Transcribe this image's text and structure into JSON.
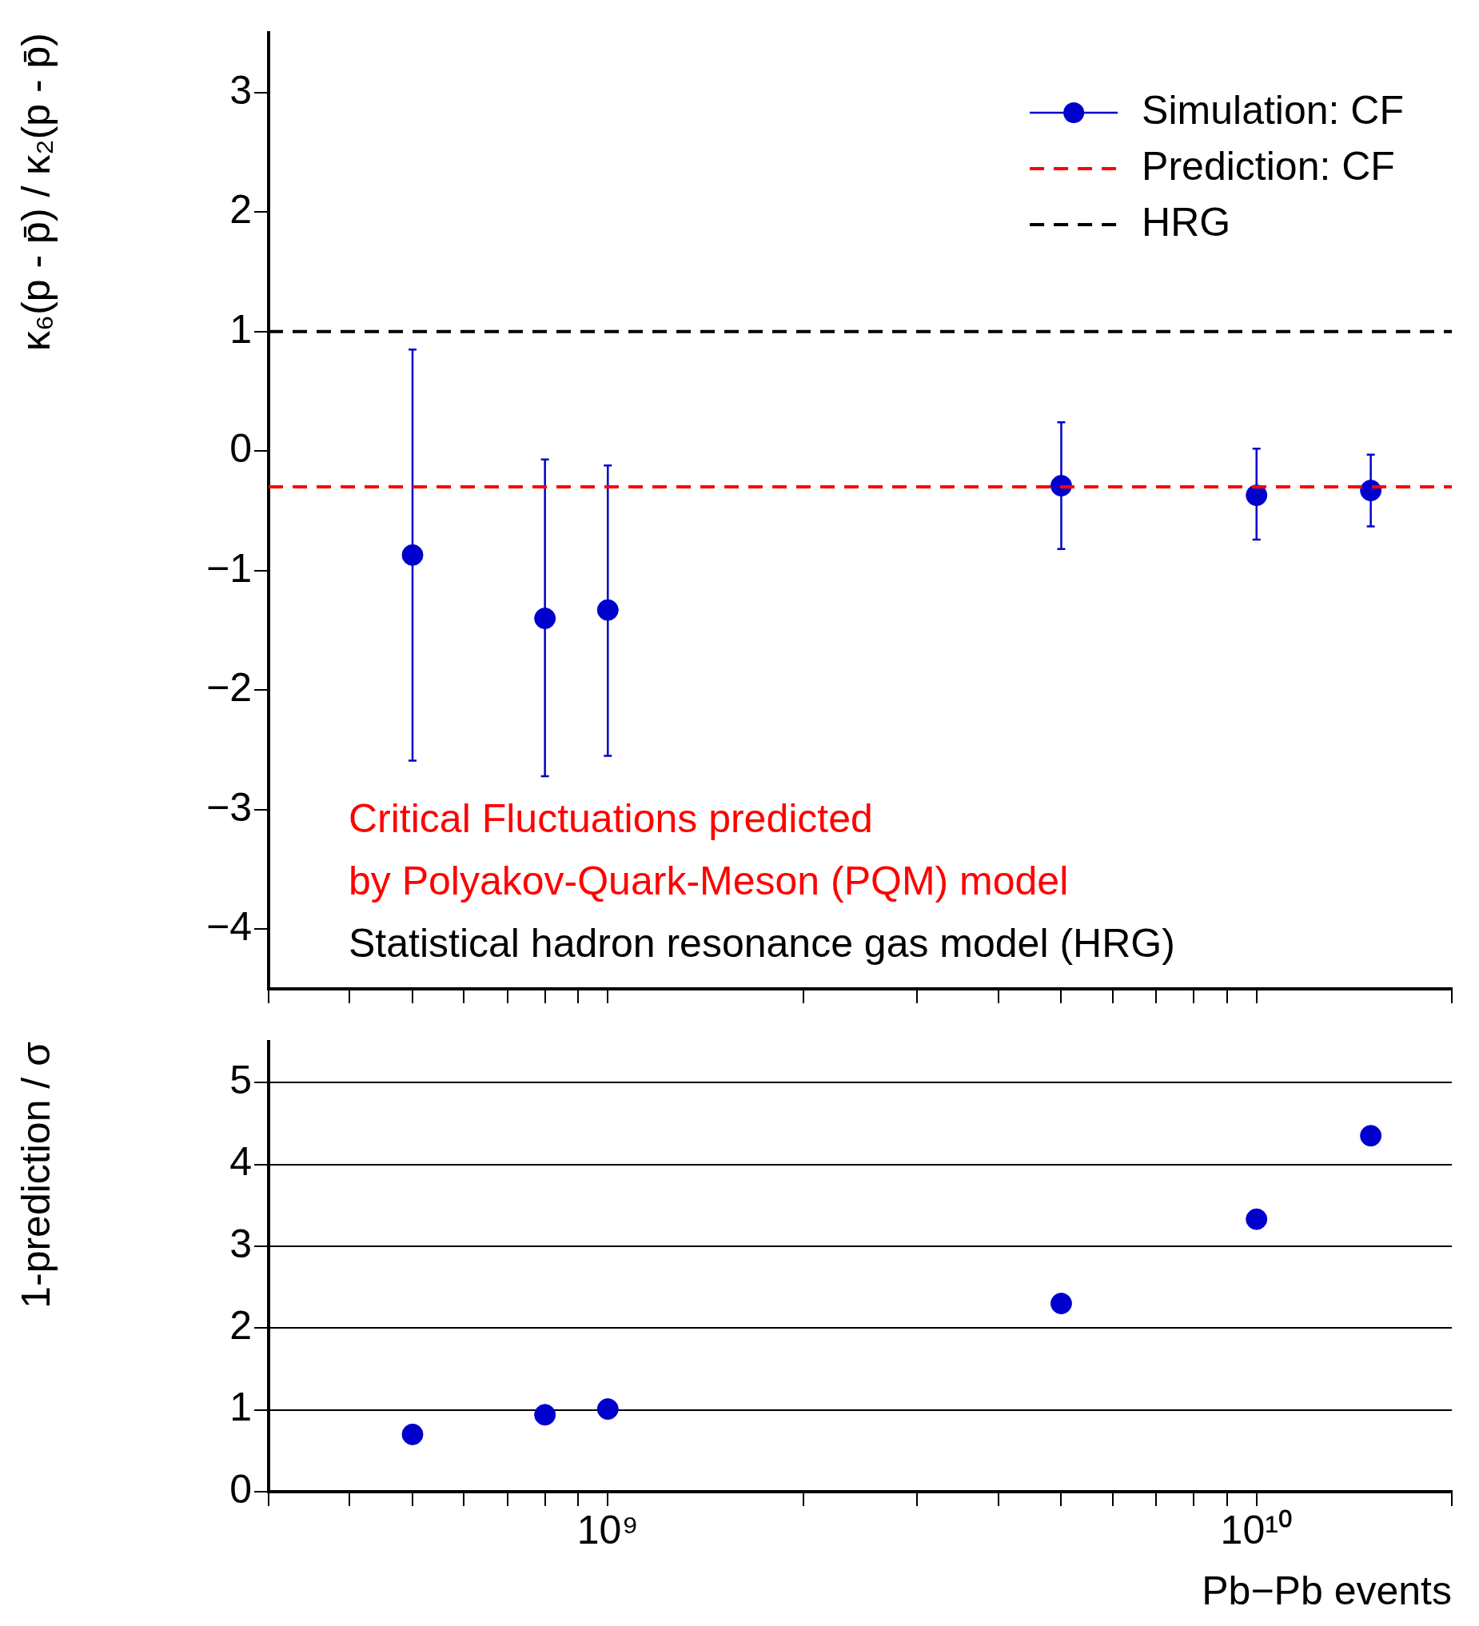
{
  "chart_data": [
    {
      "type": "scatter",
      "ylabel": "κ₆(p - p̄) / κ₂(p - p̄)",
      "xlim": [
        300000000.0,
        20000000000.0
      ],
      "ylim": [
        -4.5,
        3.5
      ],
      "yticks": [
        -4,
        -3,
        -2,
        -1,
        0,
        1,
        2,
        3
      ],
      "xticks": [
        {
          "value": 300000000.0,
          "label": null
        },
        {
          "value": 400000000.0,
          "label": null
        },
        {
          "value": 500000000.0,
          "label": null
        },
        {
          "value": 600000000.0,
          "label": null
        },
        {
          "value": 700000000.0,
          "label": null
        },
        {
          "value": 800000000.0,
          "label": null
        },
        {
          "value": 900000000.0,
          "label": null
        },
        {
          "value": 1000000000.0,
          "label": null
        },
        {
          "value": 2000000000.0,
          "label": null
        },
        {
          "value": 3000000000.0,
          "label": null
        },
        {
          "value": 4000000000.0,
          "label": null
        },
        {
          "value": 5000000000.0,
          "label": null
        },
        {
          "value": 6000000000.0,
          "label": null
        },
        {
          "value": 7000000000.0,
          "label": null
        },
        {
          "value": 8000000000.0,
          "label": null
        },
        {
          "value": 9000000000.0,
          "label": null
        },
        {
          "value": 10000000000.0,
          "label": null
        },
        {
          "value": 20000000000.0,
          "label": null
        }
      ],
      "log": "x",
      "tick_labels": "y",
      "legend": "top right",
      "marker": "circle",
      "series": [
        {
          "name": "Simulation: CF",
          "color": "#0000cc",
          "x": [
            500000000.0,
            800000000.0,
            1000000000.0,
            5000000000.0,
            10000000000.0,
            15000000000.0
          ],
          "values": [
            -0.87,
            -1.4,
            -1.33,
            -0.29,
            -0.37,
            -0.33
          ],
          "errors": [
            [
              -2.59,
              0.85
            ],
            [
              -2.72,
              -0.07
            ],
            [
              -2.55,
              -0.12
            ],
            [
              -0.82,
              0.24
            ],
            [
              -0.74,
              0.02
            ],
            [
              -0.63,
              -0.03
            ]
          ]
        }
      ],
      "ref_lines": [
        {
          "axis": "y",
          "value": -0.3,
          "label": "Prediction: CF",
          "color": "#ff0000",
          "line_style": "dashed"
        },
        {
          "axis": "y",
          "value": 1,
          "label": "HRG",
          "color": "#000000",
          "line_style": "dashed"
        }
      ],
      "annotations": [
        "Critical Fluctuations predicted",
        "by Polyakov-Quark-Meson (PQM) model",
        "Statistical hadron resonance gas model (HRG)"
      ]
    },
    {
      "type": "scatter",
      "ylabel": "1-prediction / σ",
      "xlabel": "Pb−Pb events",
      "xlim": [
        300000000.0,
        20000000000.0
      ],
      "ylim": [
        0,
        5.5
      ],
      "yticks": [
        0,
        1,
        2,
        3,
        4,
        5
      ],
      "xticks": [
        {
          "value": 300000000.0,
          "label": null
        },
        {
          "value": 400000000.0,
          "label": null
        },
        {
          "value": 500000000.0,
          "label": null
        },
        {
          "value": 600000000.0,
          "label": null
        },
        {
          "value": 700000000.0,
          "label": null
        },
        {
          "value": 800000000.0,
          "label": null
        },
        {
          "value": 900000000.0,
          "label": null
        },
        {
          "value": 1000000000.0,
          "label": "10⁹"
        },
        {
          "value": 2000000000.0,
          "label": null
        },
        {
          "value": 3000000000.0,
          "label": null
        },
        {
          "value": 4000000000.0,
          "label": null
        },
        {
          "value": 5000000000.0,
          "label": null
        },
        {
          "value": 6000000000.0,
          "label": null
        },
        {
          "value": 7000000000.0,
          "label": null
        },
        {
          "value": 8000000000.0,
          "label": null
        },
        {
          "value": 9000000000.0,
          "label": null
        },
        {
          "value": 10000000000.0,
          "label": "10¹⁰"
        },
        {
          "value": 20000000000.0,
          "label": null
        }
      ],
      "log": "x",
      "grid": "y",
      "marker": "circle",
      "series": [
        {
          "color": "#0000cc",
          "x": [
            500000000.0,
            800000000.0,
            1000000000.0,
            5000000000.0,
            10000000000.0,
            15000000000.0
          ],
          "values": [
            0.7,
            0.94,
            1.01,
            2.3,
            3.33,
            4.35
          ]
        }
      ]
    }
  ]
}
